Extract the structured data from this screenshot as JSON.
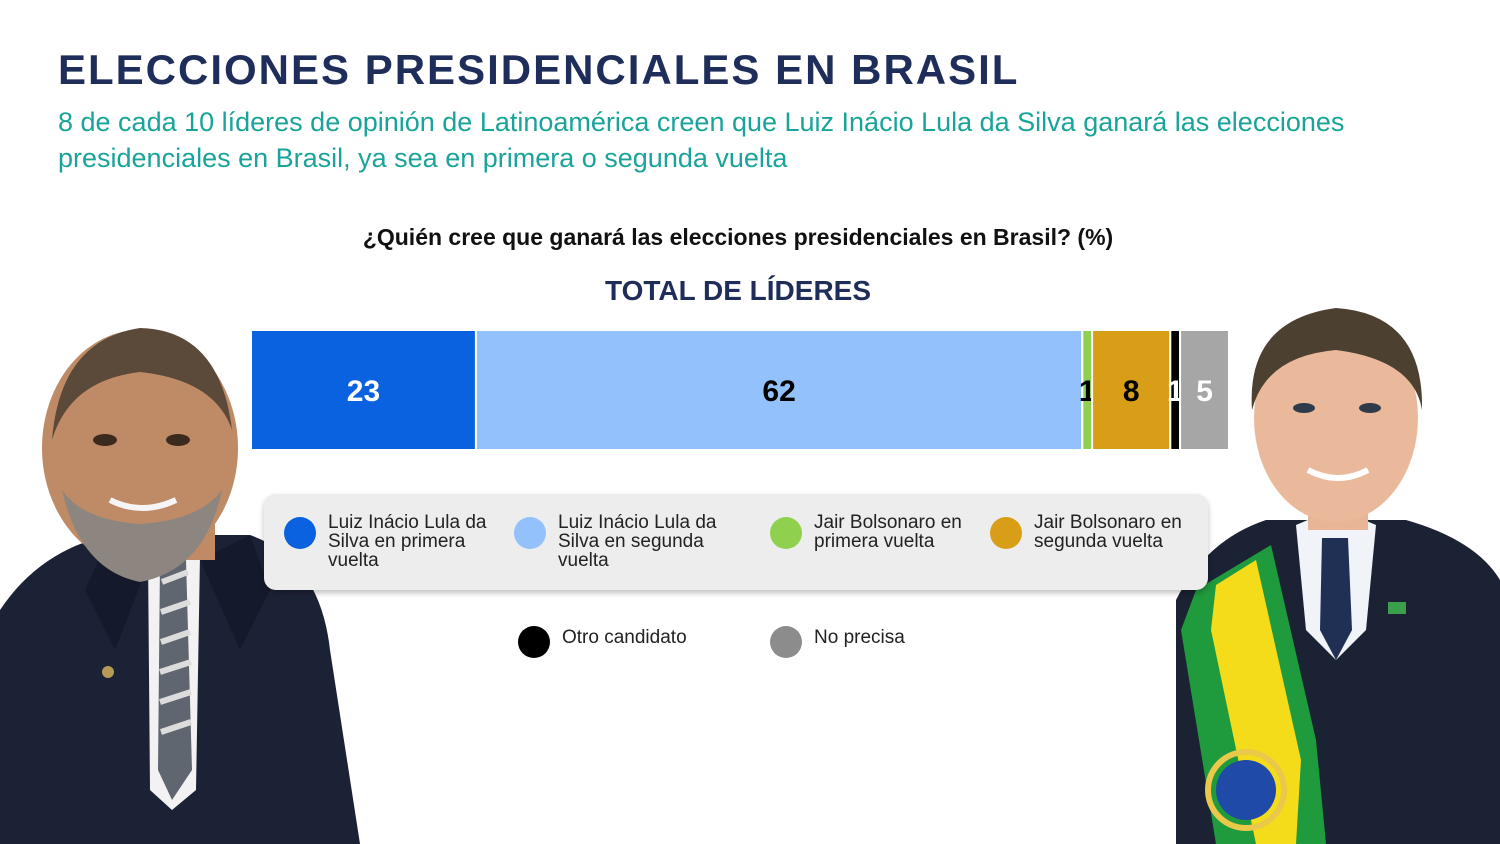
{
  "header": {
    "title": "ELECCIONES PRESIDENCIALES EN BRASIL",
    "subtitle": "8 de cada 10 líderes de opinión de Latinoamérica creen que Luiz Inácio Lula da Silva ganará las elecciones presidenciales en Brasil, ya sea en primera o segunda vuelta"
  },
  "chart_data": {
    "type": "bar",
    "orientation": "horizontal-stacked",
    "title": "¿Quién cree que ganará las elecciones presidenciales en Brasil? (%)",
    "categories": [
      "TOTAL DE LÍDERES"
    ],
    "xlim": [
      0,
      100
    ],
    "legend_position": "bottom",
    "series": [
      {
        "name": "Luiz Inácio Lula da Silva en primera vuelta",
        "values": [
          23
        ],
        "color": "#0a62e0",
        "label_color": "#ffffff"
      },
      {
        "name": "Luiz Inácio Lula da Silva en segunda vuelta",
        "values": [
          62
        ],
        "color": "#92c1fc",
        "label_color": "#000000"
      },
      {
        "name": "Jair Bolsonaro en primera vuelta",
        "values": [
          1
        ],
        "color": "#8fd14f",
        "label_color": "#000000"
      },
      {
        "name": "Jair Bolsonaro en segunda vuelta",
        "values": [
          8
        ],
        "color": "#d99e17",
        "label_color": "#000000"
      },
      {
        "name": "Otro candidato",
        "values": [
          1
        ],
        "color": "#000000",
        "label_color": "#ffffff"
      },
      {
        "name": "No precisa",
        "values": [
          5
        ],
        "color": "#a6a6a6",
        "label_color": "#ffffff"
      }
    ]
  },
  "legend": {
    "items": [
      {
        "label": "Luiz Inácio Lula da Silva en primera vuelta",
        "color": "#0a62e0"
      },
      {
        "label": "Luiz Inácio Lula da Silva en segunda vuelta",
        "color": "#92c1fc"
      },
      {
        "label": "Jair Bolsonaro en primera vuelta",
        "color": "#8fd14f"
      },
      {
        "label": "Jair Bolsonaro en segunda vuelta",
        "color": "#d99e17"
      },
      {
        "label": "Otro candidato",
        "color": "#000000"
      },
      {
        "label": "No precisa",
        "color": "#8c8c8c"
      }
    ]
  },
  "photos": {
    "left": "Luiz Inácio Lula da Silva portrait",
    "right": "Jair Bolsonaro portrait with presidential sash"
  }
}
